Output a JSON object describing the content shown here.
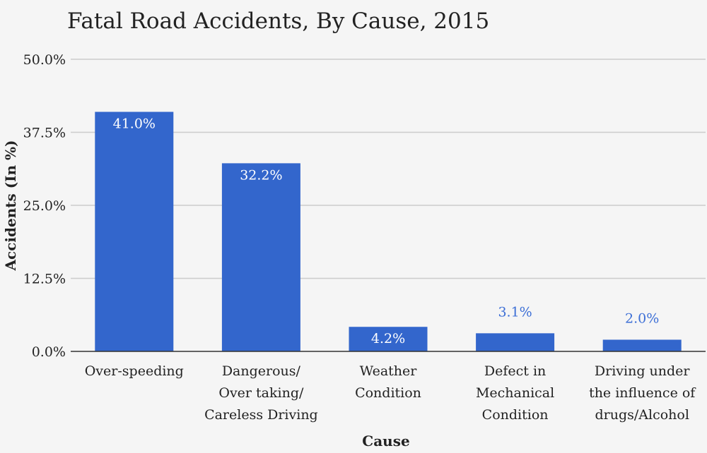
{
  "colors": {
    "background": "#f5f5f5",
    "bar": "#3366cc",
    "grid": "#cccccc",
    "axis": "#333333",
    "text": "#222222",
    "label_inside": "#ffffff",
    "label_outside": "#3d6fd6"
  },
  "chart_data": {
    "type": "bar",
    "title": "Fatal Road Accidents, By Cause, 2015",
    "xlabel": "Cause",
    "ylabel": "Accidents (In %)",
    "ylim": [
      0,
      50
    ],
    "yticks": [
      0,
      12.5,
      25,
      37.5,
      50
    ],
    "ytick_labels": [
      "0.0%",
      "12.5%",
      "25.0%",
      "37.5%",
      "50.0%"
    ],
    "grid": true,
    "categories": [
      [
        "Over-speeding"
      ],
      [
        "Dangerous/",
        "Over taking/",
        "Careless Driving"
      ],
      [
        "Weather",
        "Condition"
      ],
      [
        "Defect in",
        "Mechanical",
        "Condition"
      ],
      [
        "Driving under",
        "the influence of",
        "drugs/Alcohol"
      ]
    ],
    "values": [
      41.0,
      32.2,
      4.2,
      3.1,
      2.0
    ],
    "data_labels": [
      "41.0%",
      "32.2%",
      "4.2%",
      "3.1%",
      "2.0%"
    ]
  }
}
